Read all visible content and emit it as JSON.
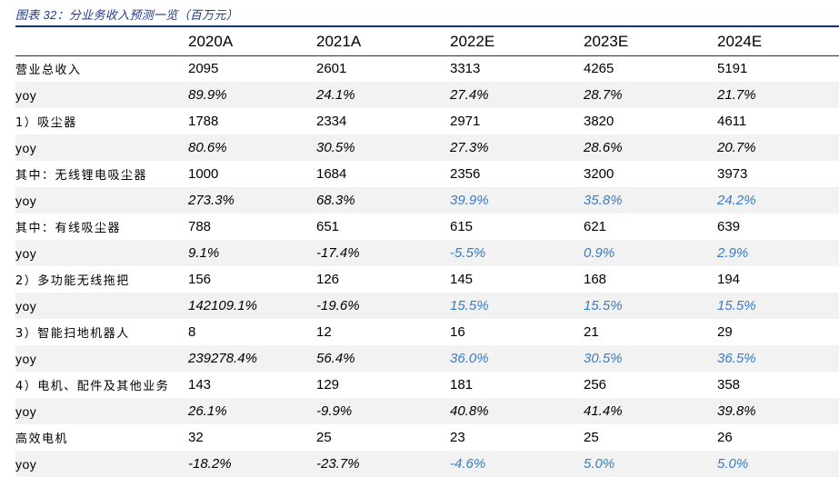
{
  "caption": "图表 32：分业务收入预测一览（百万元）",
  "columns": [
    "2020A",
    "2021A",
    "2022E",
    "2023E",
    "2024E"
  ],
  "colors": {
    "rule": "#14306E",
    "caption": "#1F3A8A",
    "estimate": "#3A7CC3",
    "alt_row": "#F2F2F2"
  },
  "rows": [
    {
      "label": "营业总收入",
      "kind": "num",
      "values": [
        "2095",
        "2601",
        "3313",
        "4265",
        "5191"
      ]
    },
    {
      "label": "yoy",
      "kind": "pct",
      "values": [
        "89.9%",
        "24.1%",
        "27.4%",
        "28.7%",
        "21.7%"
      ]
    },
    {
      "label": "1）吸尘器",
      "kind": "num",
      "values": [
        "1788",
        "2334",
        "2971",
        "3820",
        "4611"
      ]
    },
    {
      "label": "yoy",
      "kind": "pct",
      "values": [
        "80.6%",
        "30.5%",
        "27.3%",
        "28.6%",
        "20.7%"
      ]
    },
    {
      "label": "其中：无线锂电吸尘器",
      "kind": "num",
      "values": [
        "1000",
        "1684",
        "2356",
        "3200",
        "3973"
      ]
    },
    {
      "label": "yoy",
      "kind": "pct",
      "est": true,
      "values": [
        "273.3%",
        "68.3%",
        "39.9%",
        "35.8%",
        "24.2%"
      ]
    },
    {
      "label": "其中：有线吸尘器",
      "kind": "num",
      "values": [
        "788",
        "651",
        "615",
        "621",
        "639"
      ]
    },
    {
      "label": "yoy",
      "kind": "pct",
      "est": true,
      "values": [
        "9.1%",
        "-17.4%",
        "-5.5%",
        "0.9%",
        "2.9%"
      ]
    },
    {
      "label": "2）多功能无线拖把",
      "kind": "num",
      "values": [
        "156",
        "126",
        "145",
        "168",
        "194"
      ]
    },
    {
      "label": "yoy",
      "kind": "pct",
      "est": true,
      "values": [
        "142109.1%",
        "-19.6%",
        "15.5%",
        "15.5%",
        "15.5%"
      ]
    },
    {
      "label": "3）智能扫地机器人",
      "kind": "num",
      "values": [
        "8",
        "12",
        "16",
        "21",
        "29"
      ]
    },
    {
      "label": "yoy",
      "kind": "pct",
      "est": true,
      "values": [
        "239278.4%",
        "56.4%",
        "36.0%",
        "30.5%",
        "36.5%"
      ]
    },
    {
      "label": "4）电机、配件及其他业务",
      "kind": "num",
      "values": [
        "143",
        "129",
        "181",
        "256",
        "358"
      ]
    },
    {
      "label": "yoy",
      "kind": "pct",
      "values": [
        "26.1%",
        "-9.9%",
        "40.8%",
        "41.4%",
        "39.8%"
      ]
    },
    {
      "label": "高效电机",
      "kind": "num",
      "values": [
        "32",
        "25",
        "23",
        "25",
        "26"
      ]
    },
    {
      "label": "yoy",
      "kind": "pct",
      "est": true,
      "values": [
        "-18.2%",
        "-23.7%",
        "-4.6%",
        "5.0%",
        "5.0%"
      ]
    }
  ]
}
